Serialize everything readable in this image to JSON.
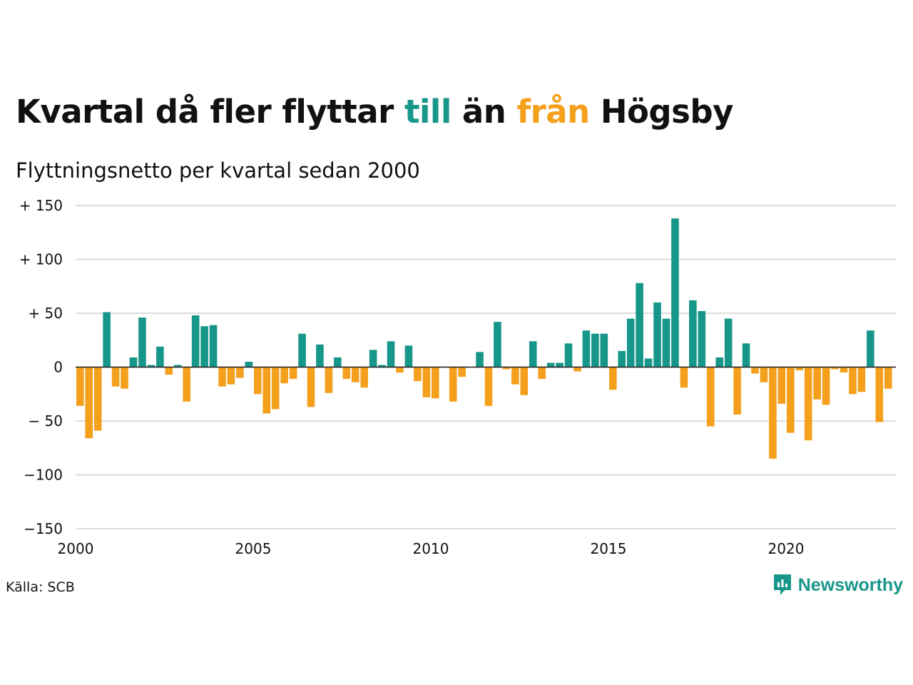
{
  "title": {
    "part1": "Kvartal då fler flyttar ",
    "till": "till",
    "part2": " än ",
    "fran": "från",
    "part3": " Högsby"
  },
  "subtitle": "Flyttningsnetto per kvartal sedan 2000",
  "source": "Källa: SCB",
  "brand": {
    "name": "Newsworthy",
    "icon": "newsworthy-logo-icon"
  },
  "colors": {
    "positive": "#17968a",
    "negative": "#f4a01c",
    "grid": "#dddddd",
    "baseline": "#222222"
  },
  "chart_data": {
    "type": "bar",
    "title": "Kvartal då fler flyttar till än från Högsby",
    "subtitle": "Flyttningsnetto per kvartal sedan 2000",
    "ylim": [
      -150,
      150
    ],
    "yticks": [
      150,
      100,
      50,
      0,
      -50,
      -100,
      -150
    ],
    "ytick_labels": [
      "+ 150",
      "+ 100",
      "+  50",
      "0",
      "− 50",
      "−100",
      "−150"
    ],
    "xticks": [
      2000,
      2005,
      2010,
      2015,
      2020
    ],
    "xtick_labels": [
      "2000",
      "2005",
      "2010",
      "2015",
      "2020"
    ],
    "grid": true,
    "categories": [
      "2000 Q1",
      "2000 Q2",
      "2000 Q3",
      "2000 Q4",
      "2001 Q1",
      "2001 Q2",
      "2001 Q3",
      "2001 Q4",
      "2002 Q1",
      "2002 Q2",
      "2002 Q3",
      "2002 Q4",
      "2003 Q1",
      "2003 Q2",
      "2003 Q3",
      "2003 Q4",
      "2004 Q1",
      "2004 Q2",
      "2004 Q3",
      "2004 Q4",
      "2005 Q1",
      "2005 Q2",
      "2005 Q3",
      "2005 Q4",
      "2006 Q1",
      "2006 Q2",
      "2006 Q3",
      "2006 Q4",
      "2007 Q1",
      "2007 Q2",
      "2007 Q3",
      "2007 Q4",
      "2008 Q1",
      "2008 Q2",
      "2008 Q3",
      "2008 Q4",
      "2009 Q1",
      "2009 Q2",
      "2009 Q3",
      "2009 Q4",
      "2010 Q1",
      "2010 Q2",
      "2010 Q3",
      "2010 Q4",
      "2011 Q1",
      "2011 Q2",
      "2011 Q3",
      "2011 Q4",
      "2012 Q1",
      "2012 Q2",
      "2012 Q3",
      "2012 Q4",
      "2013 Q1",
      "2013 Q2",
      "2013 Q3",
      "2013 Q4",
      "2014 Q1",
      "2014 Q2",
      "2014 Q3",
      "2014 Q4",
      "2015 Q1",
      "2015 Q2",
      "2015 Q3",
      "2015 Q4",
      "2016 Q1",
      "2016 Q2",
      "2016 Q3",
      "2016 Q4",
      "2017 Q1",
      "2017 Q2",
      "2017 Q3",
      "2017 Q4",
      "2018 Q1",
      "2018 Q2",
      "2018 Q3",
      "2018 Q4",
      "2019 Q1",
      "2019 Q2",
      "2019 Q3",
      "2019 Q4",
      "2020 Q1",
      "2020 Q2",
      "2020 Q3",
      "2020 Q4",
      "2021 Q1",
      "2021 Q2",
      "2021 Q3",
      "2021 Q4",
      "2022 Q1",
      "2022 Q2",
      "2022 Q3",
      "2022 Q4"
    ],
    "values": [
      -36,
      -66,
      -59,
      51,
      -18,
      -20,
      9,
      46,
      2,
      19,
      -7,
      2,
      -32,
      48,
      38,
      39,
      -18,
      -16,
      -10,
      5,
      -25,
      -43,
      -39,
      -15,
      -11,
      31,
      -37,
      21,
      -24,
      9,
      -11,
      -14,
      -19,
      16,
      2,
      24,
      -5,
      20,
      -13,
      -28,
      -29,
      0,
      -32,
      -9,
      0,
      14,
      -36,
      42,
      -2,
      -16,
      -26,
      24,
      -11,
      4,
      4,
      22,
      -4,
      34,
      31,
      31,
      -21,
      15,
      45,
      78,
      8,
      60,
      45,
      138,
      -19,
      62,
      52,
      -55,
      9,
      45,
      -44,
      22,
      -6,
      -14,
      -85,
      -34,
      -61,
      -3,
      -68,
      -30,
      -35,
      -2,
      -5,
      -25,
      -23,
      34,
      -51,
      -20
    ]
  }
}
